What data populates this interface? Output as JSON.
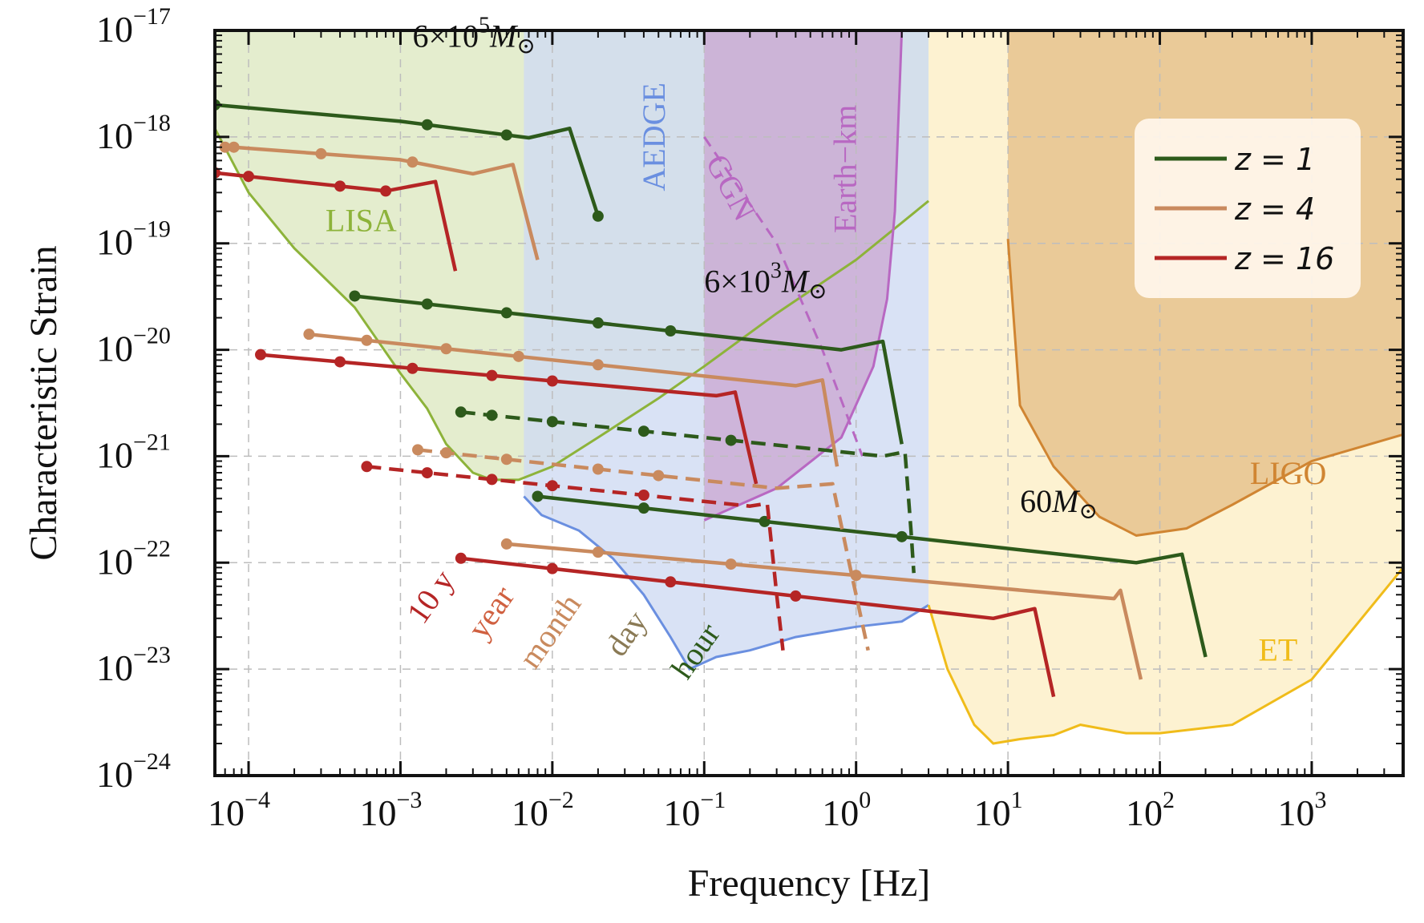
{
  "chart_data": {
    "type": "line",
    "xlabel": "Frequency [Hz]",
    "ylabel": "Characteristic Strain",
    "xscale": "log",
    "yscale": "log",
    "xlim": [
      6e-05,
      4000
    ],
    "ylim": [
      1e-24,
      1e-17
    ],
    "grid": true,
    "x_ticks": [
      {
        "base": "10",
        "exp": "−4",
        "value": 0.0001
      },
      {
        "base": "10",
        "exp": "−3",
        "value": 0.001
      },
      {
        "base": "10",
        "exp": "−2",
        "value": 0.01
      },
      {
        "base": "10",
        "exp": "−1",
        "value": 0.1
      },
      {
        "base": "10",
        "exp": "0",
        "value": 1
      },
      {
        "base": "10",
        "exp": "1",
        "value": 10
      },
      {
        "base": "10",
        "exp": "2",
        "value": 100
      },
      {
        "base": "10",
        "exp": "3",
        "value": 1000
      }
    ],
    "y_ticks": [
      {
        "base": "10",
        "exp": "−17",
        "value": 1e-17
      },
      {
        "base": "10",
        "exp": "−18",
        "value": 1e-18
      },
      {
        "base": "10",
        "exp": "−19",
        "value": 1e-19
      },
      {
        "base": "10",
        "exp": "−20",
        "value": 1e-20
      },
      {
        "base": "10",
        "exp": "−21",
        "value": 1e-21
      },
      {
        "base": "10",
        "exp": "−22",
        "value": 1e-22
      },
      {
        "base": "10",
        "exp": "−23",
        "value": 1e-23
      },
      {
        "base": "10",
        "exp": "−24",
        "value": 1e-24
      }
    ],
    "legend": {
      "placement": "top-right",
      "entries": [
        {
          "label": "z = 1",
          "color": "#2d5a1b"
        },
        {
          "label": "z = 4",
          "color": "#c98a5e"
        },
        {
          "label": "z = 16",
          "color": "#b52525"
        }
      ]
    },
    "detectors": [
      {
        "name": "LISA",
        "label": "LISA",
        "color": "#8db33a",
        "fill": "#dde8c2",
        "boundary": [
          [
            6e-05,
            1.2e-18
          ],
          [
            0.0001,
            3e-19
          ],
          [
            0.0002,
            9e-20
          ],
          [
            0.0005,
            2.5e-20
          ],
          [
            0.001,
            6e-21
          ],
          [
            0.0015,
            2.8e-21
          ],
          [
            0.002,
            1.3e-21
          ],
          [
            0.003,
            7e-22
          ],
          [
            0.004,
            6e-22
          ],
          [
            0.006,
            6e-22
          ],
          [
            0.01,
            8e-22
          ],
          [
            0.02,
            1.5e-21
          ],
          [
            0.05,
            3.5e-21
          ],
          [
            0.1,
            7e-21
          ],
          [
            0.3,
            2.2e-20
          ],
          [
            1,
            7e-20
          ],
          [
            3,
            2.5e-19
          ]
        ]
      },
      {
        "name": "AEDGE",
        "label": "AEDGE",
        "color": "#6a8fe0",
        "fill": "#cfdbf3",
        "boundary": [
          [
            0.0065,
            4.2e-22
          ],
          [
            0.0085,
            2.8e-22
          ],
          [
            0.015,
            2e-22
          ],
          [
            0.025,
            1.1e-22
          ],
          [
            0.04,
            5e-23
          ],
          [
            0.06,
            2e-23
          ],
          [
            0.08,
            1e-23
          ],
          [
            0.12,
            1.3e-23
          ],
          [
            0.2,
            1.5e-23
          ],
          [
            0.4,
            2e-23
          ],
          [
            1,
            2.5e-23
          ],
          [
            2,
            2.8e-23
          ],
          [
            3,
            4e-23
          ]
        ]
      },
      {
        "name": "Earth-km",
        "label": "Earth−km",
        "color": "#b868c2",
        "fill": "#c9a6d0",
        "boundary": [
          [
            0.1,
            2.5e-22
          ],
          [
            0.3,
            5e-22
          ],
          [
            0.8,
            1.5e-21
          ],
          [
            1.3,
            7e-21
          ],
          [
            1.6,
            3e-20
          ],
          [
            1.8,
            2e-19
          ],
          [
            2,
            1e-17
          ]
        ]
      },
      {
        "name": "GGN",
        "label": "GGN",
        "color": "#b868c2",
        "style": "dashed",
        "points": [
          [
            0.1,
            1e-18
          ],
          [
            0.3,
            1e-19
          ],
          [
            0.6,
            1e-20
          ],
          [
            1.1,
            1e-21
          ]
        ]
      },
      {
        "name": "ET",
        "label": "ET",
        "color": "#f0bc1a",
        "fill": "#fdefc6",
        "boundary": [
          [
            3,
            4e-23
          ],
          [
            4,
            1e-23
          ],
          [
            6,
            3e-24
          ],
          [
            8,
            2e-24
          ],
          [
            12,
            2.2e-24
          ],
          [
            20,
            2.4e-24
          ],
          [
            30,
            3e-24
          ],
          [
            60,
            2.5e-24
          ],
          [
            100,
            2.5e-24
          ],
          [
            300,
            3e-24
          ],
          [
            1000,
            8e-24
          ],
          [
            4000,
            9e-23
          ]
        ]
      },
      {
        "name": "LIGO",
        "label": "LIGO",
        "color": "#d08532",
        "fill": "#e5bf8a",
        "boundary": [
          [
            10,
            1.1e-19
          ],
          [
            12,
            3e-21
          ],
          [
            20,
            8e-22
          ],
          [
            40,
            2.7e-22
          ],
          [
            70,
            1.8e-22
          ],
          [
            150,
            2.1e-22
          ],
          [
            300,
            3.5e-22
          ],
          [
            1000,
            9e-22
          ],
          [
            4000,
            1.6e-21
          ]
        ]
      }
    ],
    "series": [
      {
        "name": "6×10^5 M☉, z = 1",
        "color": "#2d5a1b",
        "style": "solid",
        "points": [
          [
            6e-05,
            2e-18
          ],
          [
            0.001,
            1.4e-18
          ],
          [
            0.007,
            9.8e-19
          ],
          [
            0.013,
            1.2e-18
          ],
          [
            0.02,
            1.8e-19
          ]
        ],
        "marker_x": [
          0.0015,
          0.005,
          0.02
        ]
      },
      {
        "name": "6×10^5 M☉, z = 4",
        "color": "#c98a5e",
        "style": "solid",
        "points": [
          [
            8e-05,
            8e-19
          ],
          [
            0.001,
            6.1e-19
          ],
          [
            0.003,
            4.5e-19
          ],
          [
            0.0055,
            5.5e-19
          ],
          [
            0.008,
            7e-20
          ]
        ],
        "marker_x": [
          7e-05,
          0.0003,
          0.0012
        ]
      },
      {
        "name": "6×10^5 M☉, z = 16",
        "color": "#b52525",
        "style": "solid",
        "points": [
          [
            6e-05,
            4.6e-19
          ],
          [
            0.0008,
            3.1e-19
          ],
          [
            0.0017,
            3.8e-19
          ],
          [
            0.0023,
            5.5e-20
          ]
        ],
        "marker_x": [
          0.0001,
          0.0004,
          0.0008
        ]
      },
      {
        "name": "6×10^3 M☉, z = 1",
        "color": "#2d5a1b",
        "style": "solid",
        "points": [
          [
            0.0005,
            3.2e-20
          ],
          [
            0.8,
            1e-20
          ],
          [
            1.5,
            1.2e-20
          ],
          [
            2,
            1.3e-21
          ]
        ],
        "marker_x": [
          0.0015,
          0.005,
          0.02,
          0.06
        ]
      },
      {
        "name": "6×10^3 M☉, z = 4",
        "color": "#c98a5e",
        "style": "solid",
        "points": [
          [
            0.00025,
            1.4e-20
          ],
          [
            0.4,
            4.6e-21
          ],
          [
            0.6,
            5.2e-21
          ],
          [
            0.75,
            8e-22
          ]
        ],
        "marker_x": [
          0.0006,
          0.002,
          0.006,
          0.02
        ]
      },
      {
        "name": "6×10^3 M☉, z = 16",
        "color": "#b52525",
        "style": "solid",
        "points": [
          [
            0.00012,
            9e-21
          ],
          [
            0.12,
            3.7e-21
          ],
          [
            0.16,
            4e-21
          ],
          [
            0.22,
            5.5e-22
          ]
        ],
        "marker_x": [
          0.0004,
          0.0012,
          0.004,
          0.01
        ]
      },
      {
        "name": "60 M☉, z = 1",
        "color": "#2d5a1b",
        "style": "solid",
        "points": [
          [
            0.008,
            4.2e-22
          ],
          [
            70,
            1e-22
          ],
          [
            140,
            1.2e-22
          ],
          [
            200,
            1.3e-23
          ]
        ],
        "marker_x": [
          0.04,
          0.25,
          2
        ]
      },
      {
        "name": "60 M☉, z = 4",
        "color": "#c98a5e",
        "style": "solid",
        "points": [
          [
            0.005,
            1.5e-22
          ],
          [
            50,
            4.6e-23
          ],
          [
            55,
            5.5e-23
          ],
          [
            75,
            8e-24
          ]
        ],
        "marker_x": [
          0.02,
          0.15,
          1
        ]
      },
      {
        "name": "60 M☉, z = 16",
        "color": "#b52525",
        "style": "solid",
        "points": [
          [
            0.0025,
            1.1e-22
          ],
          [
            8,
            3e-23
          ],
          [
            15,
            3.7e-23
          ],
          [
            20,
            5.5e-24
          ]
        ],
        "marker_x": [
          0.01,
          0.06,
          0.4
        ]
      },
      {
        "name": "6×10^3 M☉ dashed, z = 1",
        "color": "#2d5a1b",
        "style": "dashed",
        "points": [
          [
            0.0025,
            2.6e-21
          ],
          [
            1.5,
            1e-21
          ],
          [
            2.1,
            1.1e-21
          ],
          [
            2.3,
            2e-22
          ],
          [
            2.4,
            8e-23
          ]
        ],
        "marker_x": [
          0.004,
          0.01,
          0.04,
          0.15
        ]
      },
      {
        "name": "6×10^3 M☉ dashed, z = 4",
        "color": "#c98a5e",
        "style": "dashed",
        "points": [
          [
            0.0013,
            1.15e-21
          ],
          [
            0.3,
            5e-22
          ],
          [
            0.7,
            5.5e-22
          ],
          [
            0.9,
            1e-22
          ],
          [
            1.2,
            1.5e-23
          ]
        ],
        "marker_x": [
          0.002,
          0.005,
          0.02,
          0.05
        ]
      },
      {
        "name": "6×10^3 M☉ dashed, z = 16",
        "color": "#b52525",
        "style": "dashed",
        "points": [
          [
            0.0006,
            8e-22
          ],
          [
            0.2,
            3.4e-22
          ],
          [
            0.26,
            3.6e-22
          ],
          [
            0.3,
            5e-23
          ],
          [
            0.33,
            1.5e-23
          ]
        ],
        "marker_x": [
          0.0015,
          0.004,
          0.01,
          0.04
        ]
      }
    ],
    "annotations": [
      {
        "id": "mass-1",
        "base": "6×10",
        "exp": "5",
        "tail": "M",
        "sym": "⊙",
        "x": 0.0012,
        "y": 7e-18
      },
      {
        "id": "mass-2",
        "base": "6×10",
        "exp": "3",
        "tail": "M",
        "sym": "⊙",
        "x": 0.1,
        "y": 3.5e-20
      },
      {
        "id": "mass-3",
        "base": "60",
        "exp": "",
        "tail": "M",
        "sym": "⊙",
        "x": 12,
        "y": 3e-22
      }
    ],
    "duration_labels": [
      {
        "label": "10 y",
        "color": "#b52525",
        "x": 0.0018,
        "y": 4.2e-23
      },
      {
        "label": "year",
        "color": "#d06040",
        "x": 0.0045,
        "y": 3e-23
      },
      {
        "label": "month",
        "color": "#c98a5e",
        "x": 0.011,
        "y": 2e-23
      },
      {
        "label": "day",
        "color": "#8a7a55",
        "x": 0.035,
        "y": 1.9e-23
      },
      {
        "label": "hour",
        "color": "#2d5a1b",
        "x": 0.1,
        "y": 1.3e-23
      }
    ]
  }
}
